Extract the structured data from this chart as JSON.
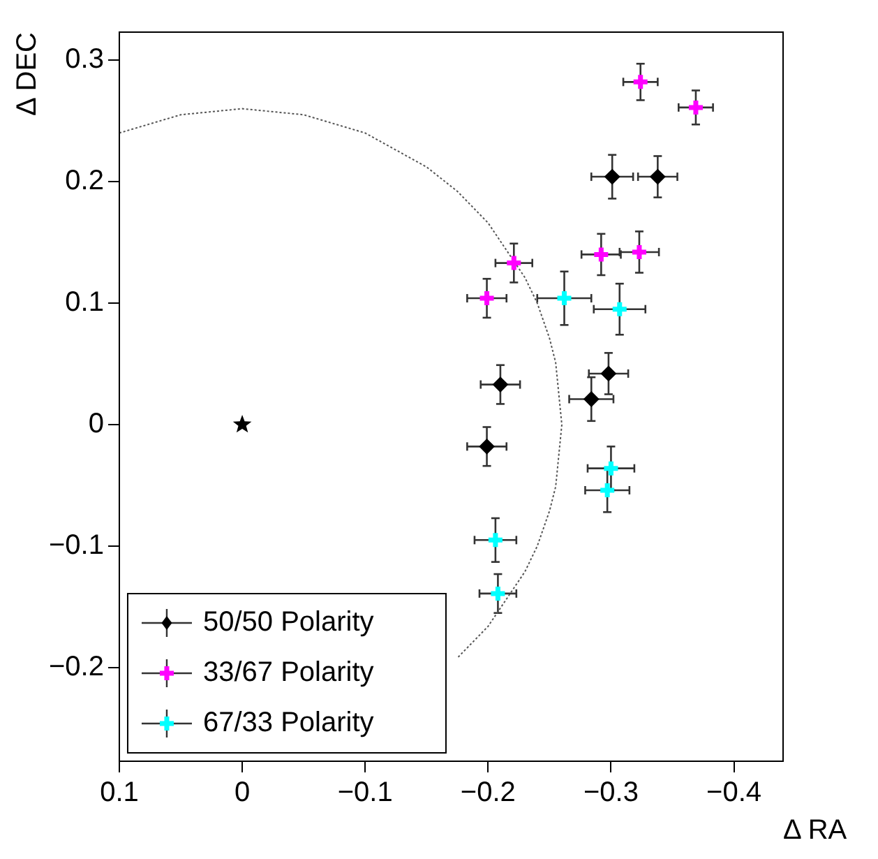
{
  "chart_data": {
    "type": "scatter",
    "xlabel": "Δ RA",
    "ylabel": "Δ DEC",
    "xlim": [
      0.1,
      -0.44
    ],
    "ylim": [
      -0.277,
      0.323
    ],
    "xticks": [
      0.1,
      0,
      -0.1,
      -0.2,
      -0.3,
      -0.4
    ],
    "yticks": [
      -0.2,
      -0.1,
      0,
      0.1,
      0.2,
      0.3
    ],
    "grid": false,
    "legend": "bottom left",
    "series": [
      {
        "name": "50/50 Polarity",
        "color": "#000000",
        "marker": "diamond",
        "x": [
          -0.301,
          -0.338,
          -0.21,
          -0.298,
          -0.284,
          -0.199
        ],
        "values": [
          0.204,
          0.204,
          0.033,
          0.042,
          0.021,
          -0.018
        ],
        "xerrors": [
          0.017,
          0.016,
          0.016,
          0.016,
          0.018,
          0.016
        ],
        "errors": [
          0.018,
          0.017,
          0.016,
          0.017,
          0.018,
          0.016
        ]
      },
      {
        "name": "33/67 Polarity",
        "color": "#ff00ff",
        "marker": "cross",
        "x": [
          -0.324,
          -0.369,
          -0.292,
          -0.323,
          -0.221,
          -0.199
        ],
        "values": [
          0.282,
          0.261,
          0.14,
          0.142,
          0.133,
          0.104
        ],
        "xerrors": [
          0.014,
          0.014,
          0.016,
          0.016,
          0.015,
          0.016
        ],
        "errors": [
          0.015,
          0.014,
          0.017,
          0.017,
          0.016,
          0.016
        ]
      },
      {
        "name": "67/33 Polarity",
        "color": "#00ffff",
        "marker": "cross",
        "x": [
          -0.262,
          -0.307,
          -0.3,
          -0.297,
          -0.206,
          -0.208
        ],
        "values": [
          0.104,
          0.095,
          -0.036,
          -0.054,
          -0.095,
          -0.139
        ],
        "xerrors": [
          0.022,
          0.021,
          0.019,
          0.018,
          0.017,
          0.015
        ],
        "errors": [
          0.022,
          0.021,
          0.018,
          0.018,
          0.018,
          0.016
        ]
      },
      {
        "color": "#000000",
        "marker": "star",
        "x": [
          0
        ],
        "values": [
          0
        ]
      },
      {
        "type": "line",
        "color": "#555555",
        "marker": "none",
        "line_style": "dotted",
        "x": [
          0.1,
          0.05,
          0,
          -0.05,
          -0.1,
          -0.15,
          -0.175,
          -0.2,
          -0.23,
          -0.24,
          -0.25,
          -0.255,
          -0.26,
          -0.255,
          -0.25,
          -0.24,
          -0.23,
          -0.2,
          -0.175
        ],
        "values": [
          0.24,
          0.255,
          0.26,
          0.255,
          0.24,
          0.212,
          0.192,
          0.166,
          0.121,
          0.1,
          0.071,
          0.051,
          0,
          -0.051,
          -0.071,
          -0.1,
          -0.121,
          -0.166,
          -0.192
        ]
      }
    ]
  }
}
